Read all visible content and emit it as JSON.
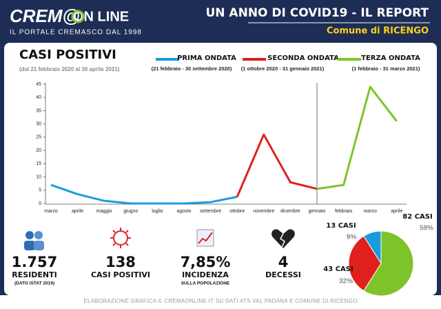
{
  "header": {
    "logo_main": "CREM@",
    "logo_suffix": "ON LINE",
    "tagline": "IL PORTALE CREMASCO DAL 1998",
    "title": "UN ANNO DI COVID19 - IL  REPORT",
    "subtitle": "Comune di RICENGO"
  },
  "chart_data": [
    {
      "type": "line",
      "title": "CASI POSITIVI",
      "subtitle": "(dal 21 febbraio 2020 al 30 aprile 2021)",
      "categories": [
        "marzo",
        "aprile",
        "maggio",
        "giugno",
        "luglio",
        "agosto",
        "settembre",
        "ottobre",
        "novembre",
        "dicembre",
        "gennaio",
        "febbraio",
        "marzo",
        "aprile"
      ],
      "series": [
        {
          "name": "PRIMA ONDATA",
          "period": "(21 febbraio - 30 settembre 2020)",
          "color": "#1a9be0",
          "values": [
            7,
            3.5,
            1,
            0,
            0,
            0,
            0.5,
            2.5,
            null,
            null,
            null,
            null,
            null,
            null
          ]
        },
        {
          "name": "SECONDA ONDATA",
          "period": "(1 ottobre 2020 - 31 gennaio 2021)",
          "color": "#e0201c",
          "values": [
            null,
            null,
            null,
            null,
            null,
            null,
            null,
            2.5,
            26,
            8,
            5.5,
            null,
            null,
            null
          ]
        },
        {
          "name": "TERZA ONDATA",
          "period": "(1 febbraio - 31 marzo 2021)",
          "color": "#7dc42a",
          "values": [
            null,
            null,
            null,
            null,
            null,
            null,
            null,
            null,
            null,
            null,
            5.5,
            7,
            44,
            31
          ]
        }
      ],
      "ylim": [
        0,
        45
      ],
      "yticks": [
        0,
        5,
        10,
        15,
        20,
        25,
        30,
        35,
        40,
        45
      ],
      "grid": false
    },
    {
      "type": "pie",
      "categories": [
        "13 CASI",
        "43 CASI",
        "82 CASI"
      ],
      "values": [
        9,
        32,
        59
      ],
      "value_labels": [
        "9%",
        "32%",
        "59%"
      ],
      "colors": [
        "#1a9be0",
        "#e0201c",
        "#7dc42a"
      ]
    }
  ],
  "stats": [
    {
      "value": "1.757",
      "label": "RESIDENTI",
      "note": "(DATO ISTAT 2019)"
    },
    {
      "value": "138",
      "label": "CASI POSITIVI"
    },
    {
      "value": "7,85%",
      "label": "INCIDENZA",
      "note": "SULLA POPOLAZIONE"
    },
    {
      "value": "4",
      "label": "DECESSI"
    }
  ],
  "footer": "ELABORAZIONE GRAFICA © CREMAONLINE.IT SU DATI ATS VAL PADANA E COMUNE DI RICENGO"
}
